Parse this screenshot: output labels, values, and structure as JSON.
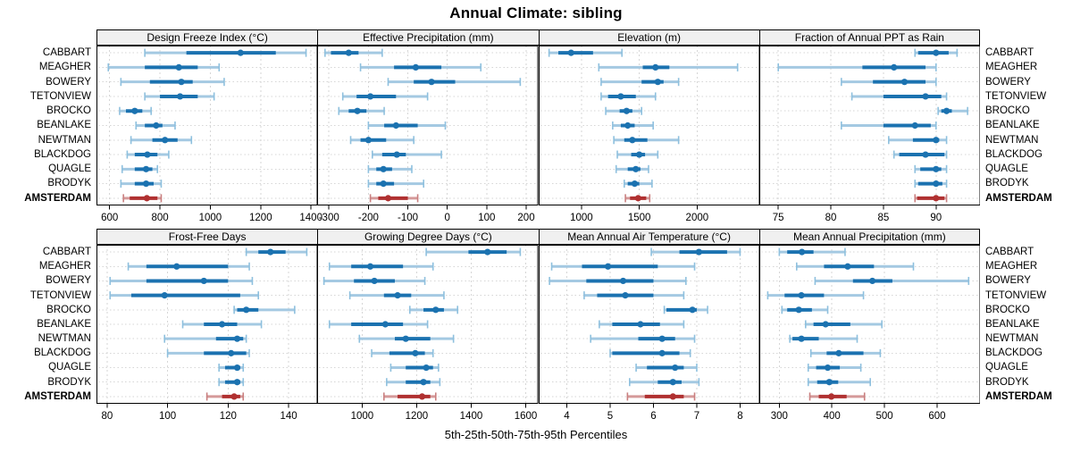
{
  "title": "Annual Climate: sibling",
  "caption": "5th-25th-50th-75th-95th Percentiles",
  "percentile_labels": [
    "5th",
    "25th",
    "50th",
    "75th",
    "95th"
  ],
  "sites": [
    "CABBART",
    "MEAGHER",
    "BOWERY",
    "TETONVIEW",
    "BROCKO",
    "BEANLAKE",
    "NEWTMAN",
    "BLACKDOG",
    "QUAGLE",
    "BRODYK",
    "AMSTERDAM"
  ],
  "highlight_site": "AMSTERDAM",
  "colors": {
    "series_dark": "#1b72b0",
    "series_light": "#a4c9e2",
    "series_cap": "#8ec0de",
    "highlight_dark": "#b03030",
    "highlight_light": "#d59a9a",
    "highlight_cap": "#c97f7f",
    "grid": "#d6d6d6",
    "header_bg": "#f0f0f0",
    "border": "#000000"
  },
  "chart_data": [
    {
      "type": "scatter",
      "style": "percentile-dot-whisker",
      "slug": "design-freeze-index",
      "title": "Design Freeze Index (°C)",
      "xlim": [
        548,
        1425
      ],
      "xticks": [
        600,
        800,
        1000,
        1200,
        1400
      ],
      "series": [
        {
          "name": "CABBART",
          "values": [
            740,
            905,
            1120,
            1260,
            1380
          ]
        },
        {
          "name": "MEAGHER",
          "values": [
            595,
            740,
            875,
            950,
            1035
          ]
        },
        {
          "name": "BOWERY",
          "values": [
            645,
            760,
            885,
            930,
            1055
          ]
        },
        {
          "name": "TETONVIEW",
          "values": [
            740,
            800,
            880,
            950,
            1015
          ]
        },
        {
          "name": "BROCKO",
          "values": [
            640,
            665,
            700,
            730,
            765
          ]
        },
        {
          "name": "BEANLAKE",
          "values": [
            705,
            740,
            785,
            810,
            860
          ]
        },
        {
          "name": "NEWTMAN",
          "values": [
            685,
            770,
            820,
            870,
            925
          ]
        },
        {
          "name": "BLACKDOG",
          "values": [
            670,
            700,
            750,
            790,
            835
          ]
        },
        {
          "name": "QUAGLE",
          "values": [
            650,
            700,
            745,
            770,
            790
          ]
        },
        {
          "name": "BRODYK",
          "values": [
            645,
            700,
            745,
            775,
            805
          ]
        },
        {
          "name": "AMSTERDAM",
          "values": [
            655,
            680,
            748,
            790,
            805
          ]
        }
      ]
    },
    {
      "type": "scatter",
      "style": "percentile-dot-whisker",
      "slug": "effective-precipitation",
      "title": "Effective Precipitation (mm)",
      "xlim": [
        -330,
        230
      ],
      "xticks": [
        -300,
        -200,
        -100,
        0,
        100,
        200
      ],
      "series": [
        {
          "name": "CABBART",
          "values": [
            -310,
            -295,
            -250,
            -225,
            -165
          ]
        },
        {
          "name": "MEAGHER",
          "values": [
            -220,
            -135,
            -80,
            -15,
            85
          ]
        },
        {
          "name": "BOWERY",
          "values": [
            -150,
            -85,
            -40,
            20,
            185
          ]
        },
        {
          "name": "TETONVIEW",
          "values": [
            -265,
            -230,
            -195,
            -130,
            -50
          ]
        },
        {
          "name": "BROCKO",
          "values": [
            -275,
            -250,
            -228,
            -205,
            -160
          ]
        },
        {
          "name": "BEANLAKE",
          "values": [
            -200,
            -160,
            -130,
            -75,
            -5
          ]
        },
        {
          "name": "NEWTMAN",
          "values": [
            -245,
            -220,
            -200,
            -155,
            -85
          ]
        },
        {
          "name": "BLACKDOG",
          "values": [
            -190,
            -165,
            -128,
            -105,
            -15
          ]
        },
        {
          "name": "QUAGLE",
          "values": [
            -200,
            -180,
            -162,
            -140,
            -90
          ]
        },
        {
          "name": "BRODYK",
          "values": [
            -200,
            -180,
            -162,
            -135,
            -60
          ]
        },
        {
          "name": "AMSTERDAM",
          "values": [
            -195,
            -175,
            -150,
            -100,
            -75
          ]
        }
      ]
    },
    {
      "type": "scatter",
      "style": "percentile-dot-whisker",
      "slug": "elevation",
      "title": "Elevation (m)",
      "xlim": [
        630,
        2540
      ],
      "xticks": [
        1000,
        1500,
        2000
      ],
      "series": [
        {
          "name": "CABBART",
          "values": [
            720,
            800,
            910,
            1100,
            1350
          ]
        },
        {
          "name": "MEAGHER",
          "values": [
            1150,
            1530,
            1640,
            1760,
            2350
          ]
        },
        {
          "name": "BOWERY",
          "values": [
            1170,
            1520,
            1660,
            1710,
            1840
          ]
        },
        {
          "name": "TETONVIEW",
          "values": [
            1170,
            1230,
            1340,
            1470,
            1640
          ]
        },
        {
          "name": "BROCKO",
          "values": [
            1210,
            1330,
            1390,
            1440,
            1520
          ]
        },
        {
          "name": "BEANLAKE",
          "values": [
            1270,
            1340,
            1400,
            1460,
            1620
          ]
        },
        {
          "name": "NEWTMAN",
          "values": [
            1280,
            1370,
            1440,
            1570,
            1840
          ]
        },
        {
          "name": "BLACKDOG",
          "values": [
            1310,
            1430,
            1500,
            1550,
            1660
          ]
        },
        {
          "name": "QUAGLE",
          "values": [
            1300,
            1400,
            1470,
            1510,
            1580
          ]
        },
        {
          "name": "BRODYK",
          "values": [
            1370,
            1400,
            1460,
            1500,
            1610
          ]
        },
        {
          "name": "AMSTERDAM",
          "values": [
            1380,
            1420,
            1490,
            1560,
            1590
          ]
        }
      ]
    },
    {
      "type": "scatter",
      "style": "percentile-dot-whisker",
      "slug": "fraction-annual-ppt-rain",
      "title": "Fraction of Annual PPT as Rain",
      "xlim": [
        73.2,
        94.2
      ],
      "xticks": [
        75,
        80,
        85,
        90
      ],
      "series": [
        {
          "name": "CABBART",
          "values": [
            88,
            88.3,
            90,
            91.2,
            92
          ]
        },
        {
          "name": "MEAGHER",
          "values": [
            75,
            83,
            86,
            89,
            90
          ]
        },
        {
          "name": "BOWERY",
          "values": [
            81,
            84,
            87,
            89,
            90
          ]
        },
        {
          "name": "TETONVIEW",
          "values": [
            82,
            85,
            89,
            90.5,
            91
          ]
        },
        {
          "name": "BROCKO",
          "values": [
            90.2,
            90.5,
            91,
            91.5,
            93
          ]
        },
        {
          "name": "BEANLAKE",
          "values": [
            81,
            85,
            88,
            89.5,
            90
          ]
        },
        {
          "name": "NEWTMAN",
          "values": [
            85.5,
            87.8,
            90,
            90.3,
            91
          ]
        },
        {
          "name": "BLACKDOG",
          "values": [
            86,
            86.5,
            89,
            90.8,
            91
          ]
        },
        {
          "name": "QUAGLE",
          "values": [
            88,
            88.5,
            90,
            90.5,
            91
          ]
        },
        {
          "name": "BRODYK",
          "values": [
            88,
            88.3,
            90,
            90.6,
            91
          ]
        },
        {
          "name": "AMSTERDAM",
          "values": [
            88,
            88.2,
            90,
            90.8,
            91
          ]
        }
      ]
    },
    {
      "type": "scatter",
      "style": "percentile-dot-whisker",
      "slug": "frost-free-days",
      "title": "Frost-Free Days",
      "xlim": [
        76.5,
        149.5
      ],
      "xticks": [
        80,
        100,
        120,
        140
      ],
      "series": [
        {
          "name": "CABBART",
          "values": [
            126,
            130,
            134,
            139,
            146
          ]
        },
        {
          "name": "MEAGHER",
          "values": [
            87,
            93,
            103,
            120,
            127
          ]
        },
        {
          "name": "BOWERY",
          "values": [
            81,
            93,
            112,
            120,
            128
          ]
        },
        {
          "name": "TETONVIEW",
          "values": [
            81,
            88,
            99,
            124,
            130
          ]
        },
        {
          "name": "BROCKO",
          "values": [
            122,
            123,
            126,
            130,
            142
          ]
        },
        {
          "name": "BEANLAKE",
          "values": [
            105,
            112,
            118,
            123,
            131
          ]
        },
        {
          "name": "NEWTMAN",
          "values": [
            99,
            116,
            123,
            125,
            126
          ]
        },
        {
          "name": "BLACKDOG",
          "values": [
            100,
            112,
            121,
            126,
            127
          ]
        },
        {
          "name": "QUAGLE",
          "values": [
            117,
            119,
            123,
            124,
            125
          ]
        },
        {
          "name": "BRODYK",
          "values": [
            117,
            119,
            123,
            124,
            125
          ]
        },
        {
          "name": "AMSTERDAM",
          "values": [
            113,
            118,
            122,
            124,
            125
          ]
        }
      ]
    },
    {
      "type": "scatter",
      "style": "percentile-dot-whisker",
      "slug": "growing-degree-days",
      "title": "Growing Degree Days (°C)",
      "xlim": [
        835,
        1645
      ],
      "xticks": [
        1000,
        1200,
        1400,
        1600
      ],
      "series": [
        {
          "name": "CABBART",
          "values": [
            1235,
            1390,
            1460,
            1530,
            1580
          ]
        },
        {
          "name": "MEAGHER",
          "values": [
            880,
            960,
            1030,
            1150,
            1260
          ]
        },
        {
          "name": "BOWERY",
          "values": [
            860,
            970,
            1045,
            1120,
            1230
          ]
        },
        {
          "name": "TETONVIEW",
          "values": [
            955,
            1080,
            1130,
            1180,
            1300
          ]
        },
        {
          "name": "BROCKO",
          "values": [
            1175,
            1225,
            1270,
            1300,
            1350
          ]
        },
        {
          "name": "BEANLAKE",
          "values": [
            880,
            960,
            1085,
            1150,
            1240
          ]
        },
        {
          "name": "NEWTMAN",
          "values": [
            990,
            1120,
            1160,
            1250,
            1335
          ]
        },
        {
          "name": "BLACKDOG",
          "values": [
            1035,
            1100,
            1195,
            1230,
            1260
          ]
        },
        {
          "name": "QUAGLE",
          "values": [
            1105,
            1160,
            1235,
            1260,
            1280
          ]
        },
        {
          "name": "BRODYK",
          "values": [
            1090,
            1160,
            1225,
            1250,
            1285
          ]
        },
        {
          "name": "AMSTERDAM",
          "values": [
            1080,
            1130,
            1220,
            1250,
            1270
          ]
        }
      ]
    },
    {
      "type": "scatter",
      "style": "percentile-dot-whisker",
      "slug": "mean-annual-air-temperature",
      "title": "Mean Annual Air Temperature (°C)",
      "xlim": [
        3.35,
        8.45
      ],
      "xticks": [
        4,
        5,
        6,
        7,
        8
      ],
      "series": [
        {
          "name": "CABBART",
          "values": [
            5.95,
            6.6,
            7.05,
            7.7,
            8.0
          ]
        },
        {
          "name": "MEAGHER",
          "values": [
            3.65,
            4.35,
            4.95,
            6.1,
            6.95
          ]
        },
        {
          "name": "BOWERY",
          "values": [
            3.6,
            4.45,
            5.3,
            6.0,
            6.75
          ]
        },
        {
          "name": "TETONVIEW",
          "values": [
            4.4,
            4.7,
            5.35,
            6.0,
            6.7
          ]
        },
        {
          "name": "BROCKO",
          "values": [
            6.25,
            6.3,
            6.9,
            7.0,
            7.25
          ]
        },
        {
          "name": "BEANLAKE",
          "values": [
            4.75,
            5.05,
            5.7,
            6.15,
            6.7
          ]
        },
        {
          "name": "NEWTMAN",
          "values": [
            4.55,
            5.65,
            6.2,
            6.5,
            6.95
          ]
        },
        {
          "name": "BLACKDOG",
          "values": [
            5.0,
            5.05,
            6.2,
            6.6,
            6.85
          ]
        },
        {
          "name": "QUAGLE",
          "values": [
            5.6,
            5.85,
            6.5,
            6.7,
            7.0
          ]
        },
        {
          "name": "BRODYK",
          "values": [
            5.45,
            6.1,
            6.45,
            6.65,
            7.05
          ]
        },
        {
          "name": "AMSTERDAM",
          "values": [
            5.4,
            5.8,
            6.45,
            6.7,
            6.95
          ]
        }
      ]
    },
    {
      "type": "scatter",
      "style": "percentile-dot-whisker",
      "slug": "mean-annual-precipitation",
      "title": "Mean Annual Precipitation (mm)",
      "xlim": [
        262,
        682
      ],
      "xticks": [
        300,
        400,
        500,
        600
      ],
      "series": [
        {
          "name": "CABBART",
          "values": [
            300,
            315,
            343,
            365,
            425
          ]
        },
        {
          "name": "MEAGHER",
          "values": [
            333,
            385,
            430,
            480,
            555
          ]
        },
        {
          "name": "BOWERY",
          "values": [
            368,
            440,
            477,
            515,
            660
          ]
        },
        {
          "name": "TETONVIEW",
          "values": [
            278,
            310,
            342,
            385,
            460
          ]
        },
        {
          "name": "BROCKO",
          "values": [
            305,
            315,
            337,
            362,
            392
          ]
        },
        {
          "name": "BEANLAKE",
          "values": [
            350,
            365,
            388,
            435,
            495
          ]
        },
        {
          "name": "NEWTMAN",
          "values": [
            320,
            325,
            342,
            375,
            448
          ]
        },
        {
          "name": "BLACKDOG",
          "values": [
            360,
            390,
            413,
            460,
            492
          ]
        },
        {
          "name": "QUAGLE",
          "values": [
            355,
            370,
            392,
            415,
            455
          ]
        },
        {
          "name": "BRODYK",
          "values": [
            355,
            372,
            395,
            412,
            473
          ]
        },
        {
          "name": "AMSTERDAM",
          "values": [
            358,
            375,
            399,
            428,
            462
          ]
        }
      ]
    }
  ]
}
